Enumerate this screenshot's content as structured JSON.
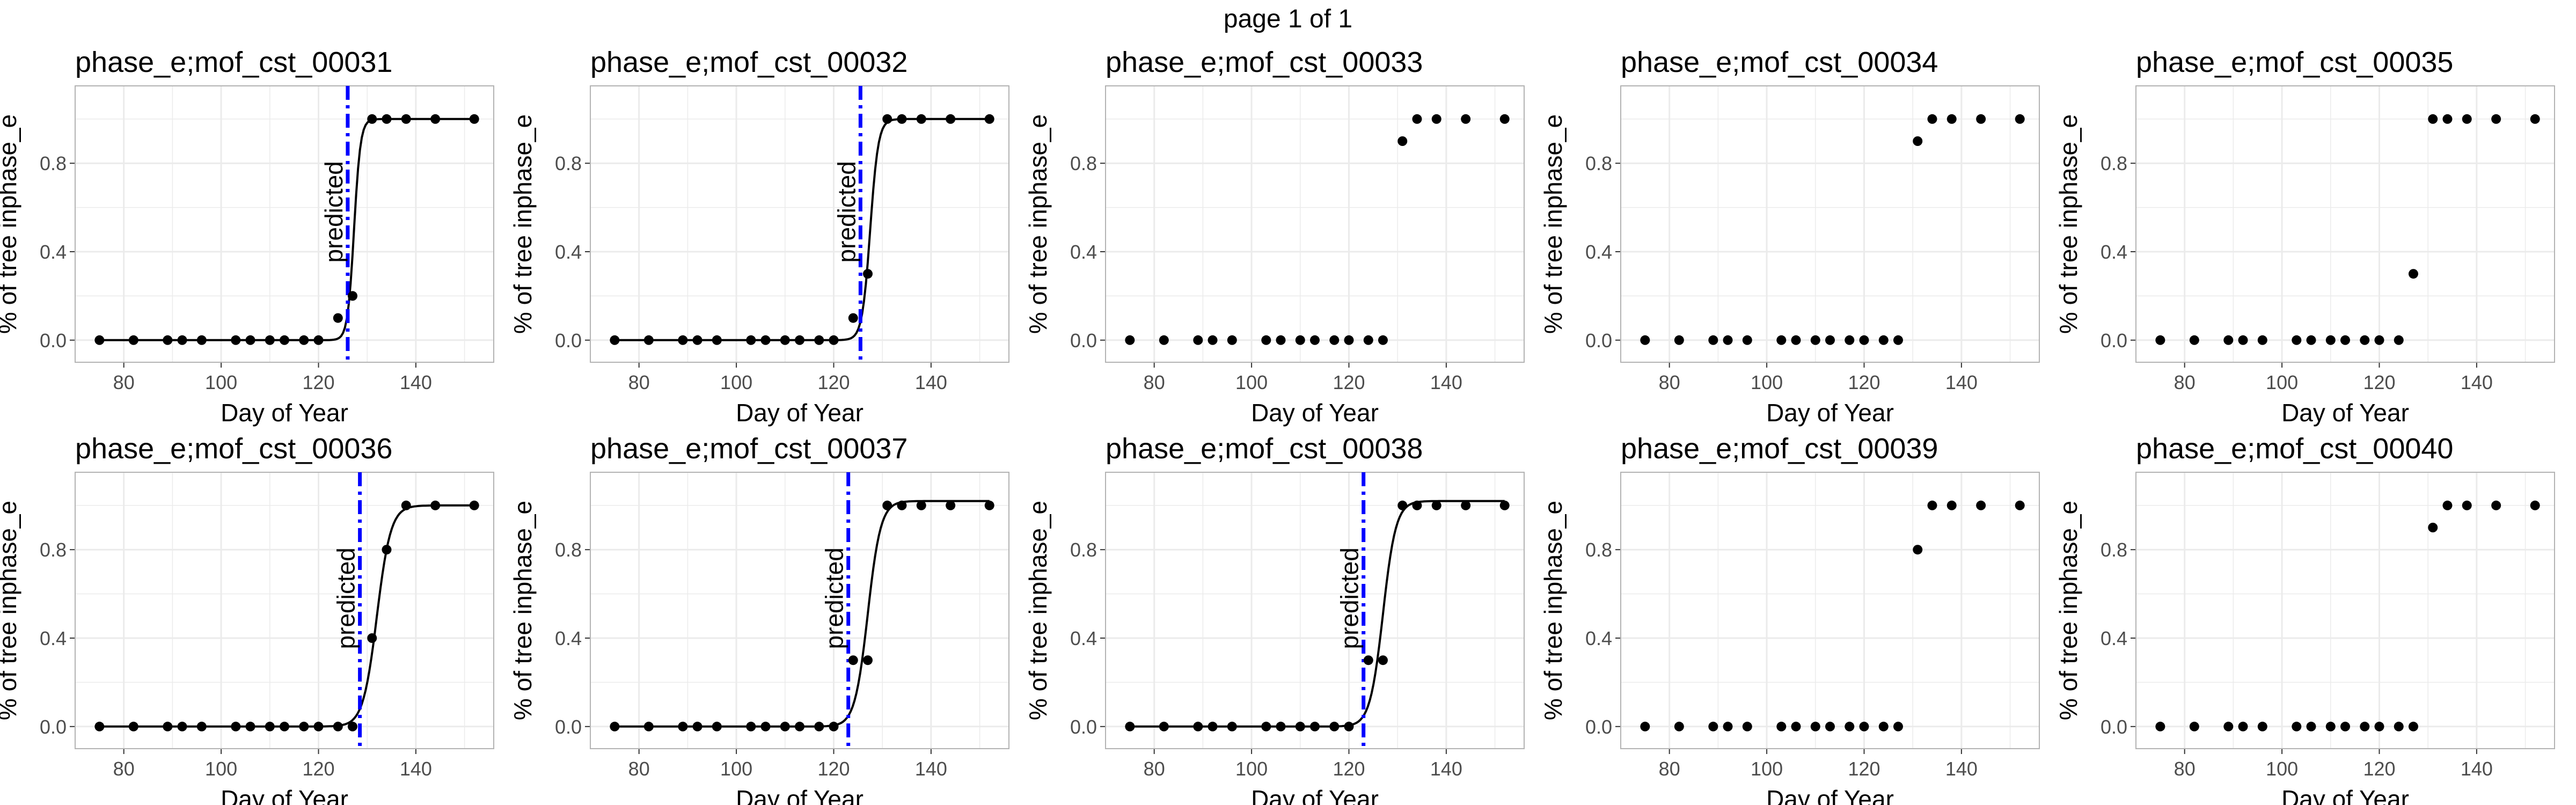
{
  "page_title": "page 1 of 1",
  "colors": {
    "points": "#000000",
    "curve": "#000000",
    "predicted_line": "#0000ff",
    "grid": "#ebebeb",
    "panel_border": "#b3b3b3"
  },
  "chart_data": [
    {
      "type": "scatter",
      "title": "phase_e;mof_cst_00031",
      "xlabel": "Day of Year",
      "ylabel": "% of tree inphase_e",
      "xlim": [
        70,
        156
      ],
      "ylim": [
        -0.1,
        1.15
      ],
      "xticks": [
        80,
        100,
        120,
        140
      ],
      "yticks": [
        0.0,
        0.4,
        0.8
      ],
      "x": [
        75,
        82,
        89,
        92,
        96,
        103,
        106,
        110,
        113,
        117,
        120,
        124,
        127,
        131,
        134,
        138,
        144,
        152
      ],
      "y": [
        0,
        0,
        0,
        0,
        0,
        0,
        0,
        0,
        0,
        0,
        0,
        0.1,
        0.2,
        1,
        1,
        1,
        1,
        1
      ],
      "fit_curve": {
        "midpoint": 127.3,
        "slope": 1.5,
        "max": 1.0
      },
      "predicted": {
        "x": 126,
        "label": "predicted"
      }
    },
    {
      "type": "scatter",
      "title": "phase_e;mof_cst_00032",
      "xlabel": "Day of Year",
      "ylabel": "% of tree inphase_e",
      "xlim": [
        70,
        156
      ],
      "ylim": [
        -0.1,
        1.15
      ],
      "xticks": [
        80,
        100,
        120,
        140
      ],
      "yticks": [
        0.0,
        0.4,
        0.8
      ],
      "x": [
        75,
        82,
        89,
        92,
        96,
        103,
        106,
        110,
        113,
        117,
        120,
        124,
        127,
        131,
        134,
        138,
        144,
        152
      ],
      "y": [
        0,
        0,
        0,
        0,
        0,
        0,
        0,
        0,
        0,
        0,
        0,
        0.1,
        0.3,
        1,
        1,
        1,
        1,
        1
      ],
      "fit_curve": {
        "midpoint": 127.5,
        "slope": 1.2,
        "max": 1.0
      },
      "predicted": {
        "x": 125.5,
        "label": "predicted"
      }
    },
    {
      "type": "scatter",
      "title": "phase_e;mof_cst_00033",
      "xlabel": "Day of Year",
      "ylabel": "% of tree inphase_e",
      "xlim": [
        70,
        156
      ],
      "ylim": [
        -0.1,
        1.15
      ],
      "xticks": [
        80,
        100,
        120,
        140
      ],
      "yticks": [
        0.0,
        0.4,
        0.8
      ],
      "x": [
        75,
        82,
        89,
        92,
        96,
        103,
        106,
        110,
        113,
        117,
        120,
        124,
        127,
        131,
        134,
        138,
        144,
        152
      ],
      "y": [
        0,
        0,
        0,
        0,
        0,
        0,
        0,
        0,
        0,
        0,
        0,
        0,
        0,
        0.9,
        1,
        1,
        1,
        1
      ]
    },
    {
      "type": "scatter",
      "title": "phase_e;mof_cst_00034",
      "xlabel": "Day of Year",
      "ylabel": "% of tree inphase_e",
      "xlim": [
        70,
        156
      ],
      "ylim": [
        -0.1,
        1.15
      ],
      "xticks": [
        80,
        100,
        120,
        140
      ],
      "yticks": [
        0.0,
        0.4,
        0.8
      ],
      "x": [
        75,
        82,
        89,
        92,
        96,
        103,
        106,
        110,
        113,
        117,
        120,
        124,
        127,
        131,
        134,
        138,
        144,
        152
      ],
      "y": [
        0,
        0,
        0,
        0,
        0,
        0,
        0,
        0,
        0,
        0,
        0,
        0,
        0,
        0.9,
        1,
        1,
        1,
        1
      ]
    },
    {
      "type": "scatter",
      "title": "phase_e;mof_cst_00035",
      "xlabel": "Day of Year",
      "ylabel": "% of tree inphase_e",
      "xlim": [
        70,
        156
      ],
      "ylim": [
        -0.1,
        1.15
      ],
      "xticks": [
        80,
        100,
        120,
        140
      ],
      "yticks": [
        0.0,
        0.4,
        0.8
      ],
      "x": [
        75,
        82,
        89,
        92,
        96,
        103,
        106,
        110,
        113,
        117,
        120,
        124,
        127,
        131,
        134,
        138,
        144,
        152
      ],
      "y": [
        0,
        0,
        0,
        0,
        0,
        0,
        0,
        0,
        0,
        0,
        0,
        0,
        0.3,
        1,
        1,
        1,
        1,
        1
      ]
    },
    {
      "type": "scatter",
      "title": "phase_e;mof_cst_00036",
      "xlabel": "Day of Year",
      "ylabel": "% of tree inphase_e",
      "xlim": [
        70,
        156
      ],
      "ylim": [
        -0.1,
        1.15
      ],
      "xticks": [
        80,
        100,
        120,
        140
      ],
      "yticks": [
        0.0,
        0.4,
        0.8
      ],
      "x": [
        75,
        82,
        89,
        92,
        96,
        103,
        106,
        110,
        113,
        117,
        120,
        124,
        127,
        131,
        134,
        138,
        144,
        152
      ],
      "y": [
        0,
        0,
        0,
        0,
        0,
        0,
        0,
        0,
        0,
        0,
        0,
        0,
        0,
        0.4,
        0.8,
        1,
        1,
        1
      ],
      "fit_curve": {
        "midpoint": 132,
        "slope": 0.7,
        "max": 1.0
      },
      "predicted": {
        "x": 128.5,
        "label": "predicted"
      }
    },
    {
      "type": "scatter",
      "title": "phase_e;mof_cst_00037",
      "xlabel": "Day of Year",
      "ylabel": "% of tree inphase_e",
      "xlim": [
        70,
        156
      ],
      "ylim": [
        -0.1,
        1.15
      ],
      "xticks": [
        80,
        100,
        120,
        140
      ],
      "yticks": [
        0.0,
        0.4,
        0.8
      ],
      "x": [
        75,
        82,
        89,
        92,
        96,
        103,
        106,
        110,
        113,
        117,
        120,
        124,
        127,
        131,
        134,
        138,
        144,
        152
      ],
      "y": [
        0,
        0,
        0,
        0,
        0,
        0,
        0,
        0,
        0,
        0,
        0,
        0.3,
        0.3,
        1,
        1,
        1,
        1,
        1
      ],
      "fit_curve": {
        "midpoint": 127,
        "slope": 0.75,
        "max": 1.02
      },
      "predicted": {
        "x": 123,
        "label": "predicted"
      }
    },
    {
      "type": "scatter",
      "title": "phase_e;mof_cst_00038",
      "xlabel": "Day of Year",
      "ylabel": "% of tree inphase_e",
      "xlim": [
        70,
        156
      ],
      "ylim": [
        -0.1,
        1.15
      ],
      "xticks": [
        80,
        100,
        120,
        140
      ],
      "yticks": [
        0.0,
        0.4,
        0.8
      ],
      "x": [
        75,
        82,
        89,
        92,
        96,
        103,
        106,
        110,
        113,
        117,
        120,
        124,
        127,
        131,
        134,
        138,
        144,
        152
      ],
      "y": [
        0,
        0,
        0,
        0,
        0,
        0,
        0,
        0,
        0,
        0,
        0,
        0.3,
        0.3,
        1,
        1,
        1,
        1,
        1
      ],
      "fit_curve": {
        "midpoint": 127,
        "slope": 0.75,
        "max": 1.02
      },
      "predicted": {
        "x": 123,
        "label": "predicted"
      }
    },
    {
      "type": "scatter",
      "title": "phase_e;mof_cst_00039",
      "xlabel": "Day of Year",
      "ylabel": "% of tree inphase_e",
      "xlim": [
        70,
        156
      ],
      "ylim": [
        -0.1,
        1.15
      ],
      "xticks": [
        80,
        100,
        120,
        140
      ],
      "yticks": [
        0.0,
        0.4,
        0.8
      ],
      "x": [
        75,
        82,
        89,
        92,
        96,
        103,
        106,
        110,
        113,
        117,
        120,
        124,
        127,
        131,
        134,
        138,
        144,
        152
      ],
      "y": [
        0,
        0,
        0,
        0,
        0,
        0,
        0,
        0,
        0,
        0,
        0,
        0,
        0,
        0.8,
        1,
        1,
        1,
        1
      ]
    },
    {
      "type": "scatter",
      "title": "phase_e;mof_cst_00040",
      "xlabel": "Day of Year",
      "ylabel": "% of tree inphase_e",
      "xlim": [
        70,
        156
      ],
      "ylim": [
        -0.1,
        1.15
      ],
      "xticks": [
        80,
        100,
        120,
        140
      ],
      "yticks": [
        0.0,
        0.4,
        0.8
      ],
      "x": [
        75,
        82,
        89,
        92,
        96,
        103,
        106,
        110,
        113,
        117,
        120,
        124,
        127,
        131,
        134,
        138,
        144,
        152
      ],
      "y": [
        0,
        0,
        0,
        0,
        0,
        0,
        0,
        0,
        0,
        0,
        0,
        0,
        0,
        0.9,
        1,
        1,
        1,
        1
      ]
    }
  ]
}
